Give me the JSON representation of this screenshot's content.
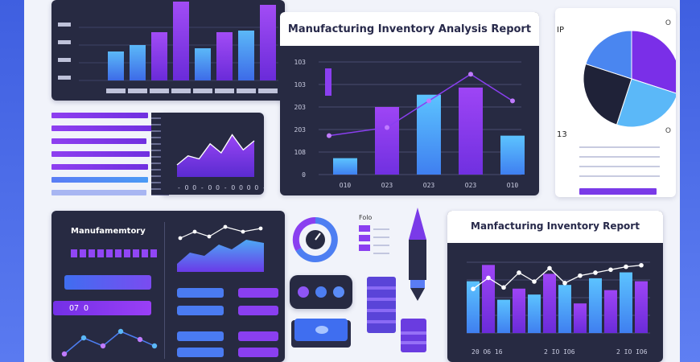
{
  "colors": {
    "panel": "#272a42",
    "blue": "#4da8f5",
    "purple": "#8a2be2",
    "violet": "#6a2bd9",
    "light_blue": "#5cc3ff"
  },
  "chart_data": [
    {
      "type": "bar",
      "panel": "top-left",
      "categories": [
        "",
        "",
        "",
        "",
        "",
        "",
        "",
        ""
      ],
      "values": [
        36,
        44,
        60,
        98,
        40,
        60,
        62,
        94
      ],
      "ylim": [
        0,
        100
      ],
      "grid": true
    },
    {
      "type": "bar",
      "panel": "center",
      "title": "Manufacturing Inventory Analysis Report",
      "ytick_labels": [
        "0",
        "1O8",
        "2O3",
        "2O3",
        "1O3",
        "1O3"
      ],
      "xtick_labels": [
        "O10",
        "O23",
        "O23",
        "O23",
        "O10"
      ],
      "values": [
        16,
        66,
        78,
        85,
        38
      ],
      "line": [
        38,
        46,
        72,
        98,
        72
      ],
      "ylim": [
        0,
        110
      ],
      "grid": true
    },
    {
      "type": "pie",
      "panel": "top-right",
      "values": [
        30,
        25,
        25,
        20
      ],
      "labels": [
        "IP",
        "13",
        "",
        ""
      ]
    },
    {
      "type": "area",
      "panel": "small-area",
      "values": [
        20,
        35,
        30,
        55,
        40,
        70,
        45,
        60
      ],
      "xtick_labels": "- O O - O O - O O O O - O O O O O"
    },
    {
      "type": "bar",
      "panel": "bottom-right",
      "title": "Manfacturing Inventory Report",
      "values": [
        70,
        92,
        45,
        60,
        52,
        80,
        65,
        40,
        74,
        58,
        82,
        70
      ],
      "line": [
        40,
        55,
        42,
        62,
        50,
        68,
        48,
        58,
        62,
        66,
        70,
        72
      ],
      "xtick_labels": [
        "20 O6 16",
        "2 IO IO6",
        "2 IO IO6"
      ]
    }
  ],
  "labels": {
    "manufacturing_small": "Manufamemtory",
    "bar_value": "O7 O",
    "pen_label": "Folo",
    "top_right_corner": "O",
    "pie_label_top": "IP",
    "pie_label_bottom": "13"
  }
}
